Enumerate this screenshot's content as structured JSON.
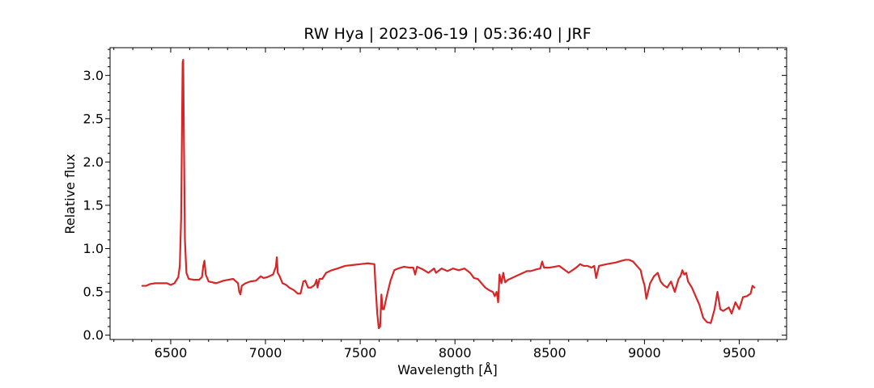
{
  "chart_data": {
    "type": "line",
    "title": "RW Hya | 2023-06-19 | 05:36:40 | JRF",
    "xlabel": "Wavelength [Å]",
    "ylabel": "Relative flux",
    "xlim": [
      6180,
      9750
    ],
    "ylim": [
      -0.05,
      3.32
    ],
    "xticks": [
      6500,
      7000,
      7500,
      8000,
      8500,
      9000,
      9500
    ],
    "xtick_labels": [
      "6500",
      "7000",
      "7500",
      "8000",
      "8500",
      "9000",
      "9500"
    ],
    "yticks": [
      0.0,
      0.5,
      1.0,
      1.5,
      2.0,
      2.5,
      3.0
    ],
    "ytick_labels": [
      "0.0",
      "0.5",
      "1.0",
      "1.5",
      "2.0",
      "2.5",
      "3.0"
    ],
    "x_minor_step": 100,
    "y_minor_step": 0.1,
    "grid": false,
    "line_color": "#d62728",
    "series": [
      {
        "x": [
          6350,
          6370,
          6390,
          6420,
          6450,
          6480,
          6500,
          6520,
          6540,
          6548,
          6555,
          6560,
          6563,
          6566,
          6570,
          6575,
          6583,
          6595,
          6620,
          6650,
          6665,
          6672,
          6678,
          6685,
          6700,
          6740,
          6780,
          6830,
          6855,
          6862,
          6868,
          6875,
          6895,
          6920,
          6950,
          6975,
          6990,
          7010,
          7040,
          7055,
          7060,
          7065,
          7075,
          7090,
          7110,
          7125,
          7150,
          7170,
          7185,
          7200,
          7210,
          7225,
          7240,
          7260,
          7270,
          7275,
          7285,
          7300,
          7320,
          7350,
          7380,
          7420,
          7460,
          7500,
          7540,
          7575,
          7580,
          7590,
          7598,
          7605,
          7612,
          7618,
          7625,
          7640,
          7660,
          7680,
          7700,
          7730,
          7760,
          7780,
          7790,
          7800,
          7830,
          7860,
          7890,
          7900,
          7930,
          7960,
          7990,
          8020,
          8050,
          8080,
          8100,
          8120,
          8140,
          8160,
          8180,
          8200,
          8210,
          8220,
          8228,
          8235,
          8245,
          8255,
          8265,
          8280,
          8300,
          8320,
          8340,
          8360,
          8380,
          8400,
          8430,
          8450,
          8460,
          8470,
          8500,
          8550,
          8600,
          8640,
          8650,
          8660,
          8680,
          8700,
          8720,
          8735,
          8745,
          8760,
          8800,
          8850,
          8880,
          8900,
          8920,
          8940,
          8960,
          8980,
          8990,
          9000,
          9010,
          9030,
          9050,
          9070,
          9085,
          9100,
          9120,
          9140,
          9160,
          9180,
          9190,
          9200,
          9210,
          9220,
          9230,
          9250,
          9270,
          9290,
          9310,
          9330,
          9350,
          9370,
          9385,
          9400,
          9415,
          9430,
          9445,
          9460,
          9480,
          9500,
          9520,
          9540,
          9560,
          9570,
          9580
        ],
        "y": [
          0.57,
          0.57,
          0.59,
          0.6,
          0.6,
          0.6,
          0.58,
          0.6,
          0.67,
          0.8,
          1.35,
          2.5,
          3.15,
          3.18,
          2.2,
          1.1,
          0.72,
          0.65,
          0.64,
          0.64,
          0.67,
          0.8,
          0.86,
          0.7,
          0.62,
          0.6,
          0.63,
          0.65,
          0.6,
          0.5,
          0.47,
          0.57,
          0.6,
          0.62,
          0.63,
          0.68,
          0.66,
          0.67,
          0.7,
          0.79,
          0.9,
          0.72,
          0.68,
          0.6,
          0.58,
          0.55,
          0.52,
          0.48,
          0.48,
          0.62,
          0.63,
          0.55,
          0.55,
          0.58,
          0.64,
          0.55,
          0.65,
          0.65,
          0.72,
          0.75,
          0.77,
          0.8,
          0.81,
          0.82,
          0.83,
          0.82,
          0.6,
          0.25,
          0.08,
          0.1,
          0.47,
          0.3,
          0.3,
          0.45,
          0.63,
          0.75,
          0.77,
          0.79,
          0.78,
          0.78,
          0.7,
          0.79,
          0.76,
          0.72,
          0.77,
          0.72,
          0.77,
          0.74,
          0.77,
          0.75,
          0.77,
          0.72,
          0.66,
          0.65,
          0.6,
          0.55,
          0.52,
          0.5,
          0.45,
          0.5,
          0.38,
          0.7,
          0.6,
          0.72,
          0.61,
          0.64,
          0.66,
          0.68,
          0.7,
          0.72,
          0.74,
          0.74,
          0.76,
          0.77,
          0.85,
          0.78,
          0.78,
          0.8,
          0.72,
          0.78,
          0.8,
          0.82,
          0.8,
          0.8,
          0.78,
          0.8,
          0.66,
          0.8,
          0.82,
          0.84,
          0.86,
          0.87,
          0.87,
          0.85,
          0.8,
          0.75,
          0.65,
          0.58,
          0.42,
          0.6,
          0.68,
          0.72,
          0.62,
          0.58,
          0.55,
          0.62,
          0.5,
          0.65,
          0.68,
          0.75,
          0.7,
          0.72,
          0.62,
          0.55,
          0.45,
          0.35,
          0.2,
          0.15,
          0.14,
          0.3,
          0.5,
          0.3,
          0.28,
          0.3,
          0.32,
          0.25,
          0.38,
          0.3,
          0.44,
          0.45,
          0.48,
          0.57,
          0.55
        ]
      }
    ]
  }
}
